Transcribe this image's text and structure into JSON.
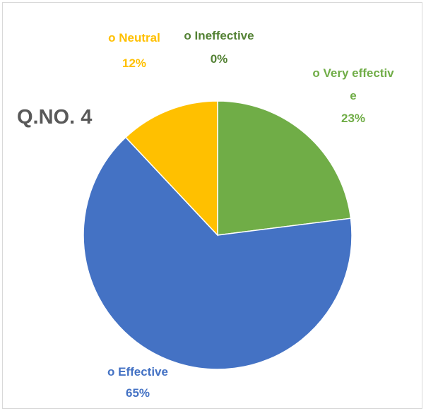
{
  "chart_data": {
    "type": "pie",
    "title": "Q.NO. 4",
    "categories": [
      "o  Very effective",
      "o  Effective",
      "o  Neutral",
      "o  Ineffective"
    ],
    "values": [
      23,
      65,
      12,
      0
    ],
    "value_labels": [
      "23%",
      "65%",
      "12%",
      "0%"
    ],
    "colors": [
      "#70ad47",
      "#4472c4",
      "#ffc000",
      "#548235"
    ]
  }
}
